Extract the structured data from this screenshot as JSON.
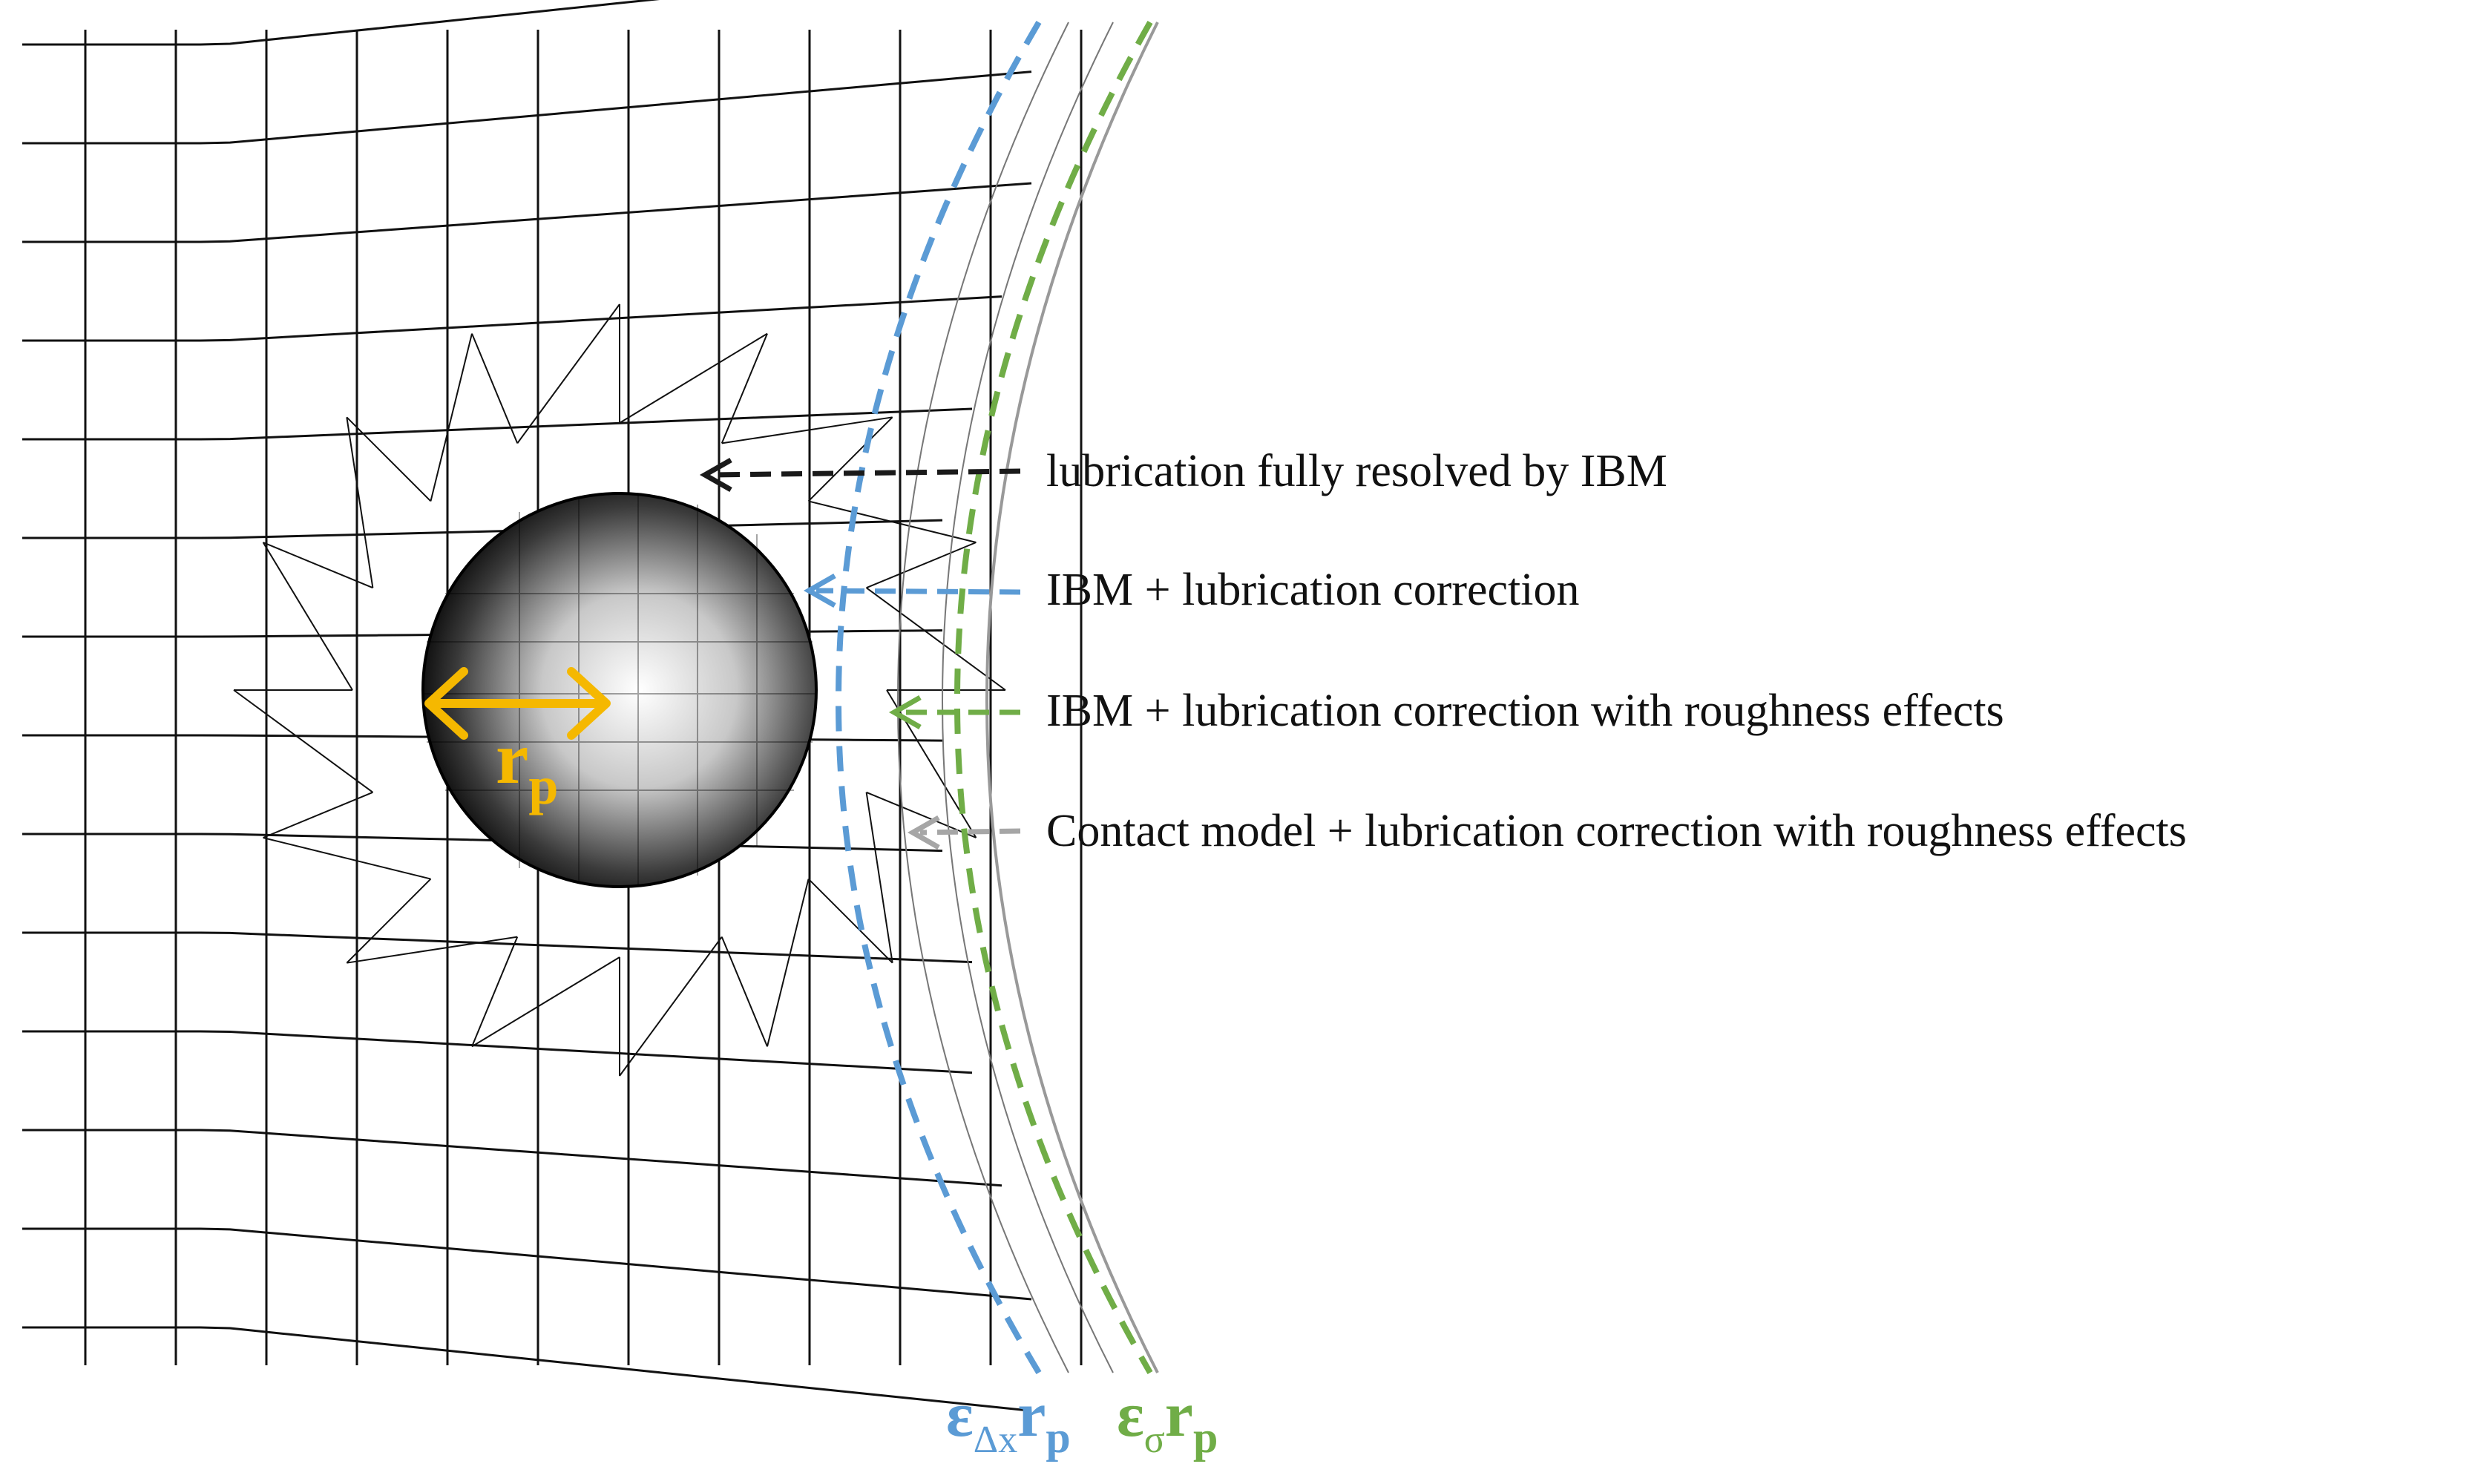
{
  "labels": {
    "fully_resolved": "lubrication fully resolved by IBM",
    "ibm_correction": "IBM + lubrication correction",
    "ibm_roughness": "IBM + lubrication correction with roughness effects",
    "contact_roughness": "Contact model + lubrication correction with roughness effects"
  },
  "symbols": {
    "radius_main": "r",
    "radius_sub": "p",
    "eps_dx_main": "ε",
    "eps_dx_sub": "Δx",
    "eps_dx_r": "r",
    "eps_dx_r_sub": "p",
    "eps_sigma_main": "ε",
    "eps_sigma_sub": "σ",
    "eps_sigma_r": "r",
    "eps_sigma_r_sub": "p"
  },
  "colors": {
    "fully_resolved": "#1a1a1a",
    "ibm_correction": "#5b9bd5",
    "ibm_roughness": "#70ad47",
    "contact_roughness": "#a6a6a6",
    "radius_arrow": "#f5b800",
    "mesh": "#111111"
  }
}
